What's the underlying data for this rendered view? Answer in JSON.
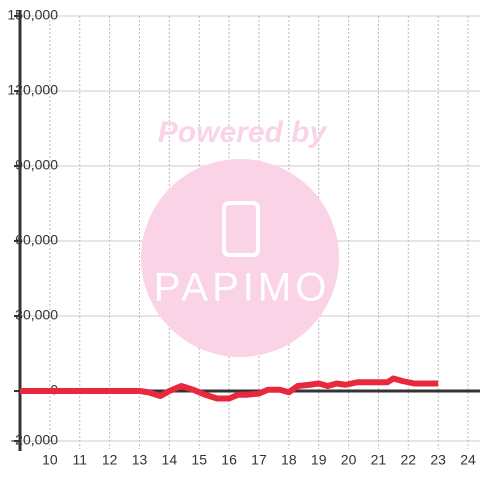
{
  "chart_data": {
    "type": "line",
    "watermark": {
      "top": "Powered by",
      "logo": "PAPIMO"
    },
    "x": [
      9,
      10,
      11,
      12,
      13,
      13.3,
      13.7,
      14,
      14.4,
      14.8,
      15.2,
      15.6,
      16,
      16.3,
      16.6,
      17,
      17.3,
      17.7,
      18,
      18.3,
      18.7,
      19,
      19.3,
      19.6,
      19.9,
      20.3,
      20.7,
      21,
      21.3,
      21.5,
      21.8,
      22.2,
      22.6,
      23
    ],
    "series": [
      {
        "color": "#e8283c",
        "values": [
          0,
          0,
          0,
          0,
          0,
          -500,
          -2000,
          0,
          2000,
          500,
          -1500,
          -3000,
          -3000,
          -1500,
          -1500,
          -1000,
          500,
          500,
          -500,
          2000,
          2500,
          3000,
          2000,
          3000,
          2500,
          3500,
          3500,
          3500,
          3500,
          5000,
          4000,
          3000,
          3000,
          3000
        ]
      }
    ],
    "xlim": [
      9,
      24.4
    ],
    "xticks": [
      10,
      11,
      12,
      13,
      14,
      15,
      16,
      17,
      18,
      19,
      20,
      21,
      22,
      23,
      24
    ],
    "ylim": [
      -20000,
      150000
    ],
    "yticks": [
      {
        "value": -20000,
        "label": "-20,000"
      },
      0,
      {
        "value": 30000,
        "label": "30,000"
      },
      {
        "value": 60000,
        "label": "60,000"
      },
      {
        "value": 90000,
        "label": "90,000"
      },
      {
        "value": 120000,
        "label": "120,000"
      },
      {
        "value": 150000,
        "label": "150,000"
      }
    ],
    "grid": true
  }
}
